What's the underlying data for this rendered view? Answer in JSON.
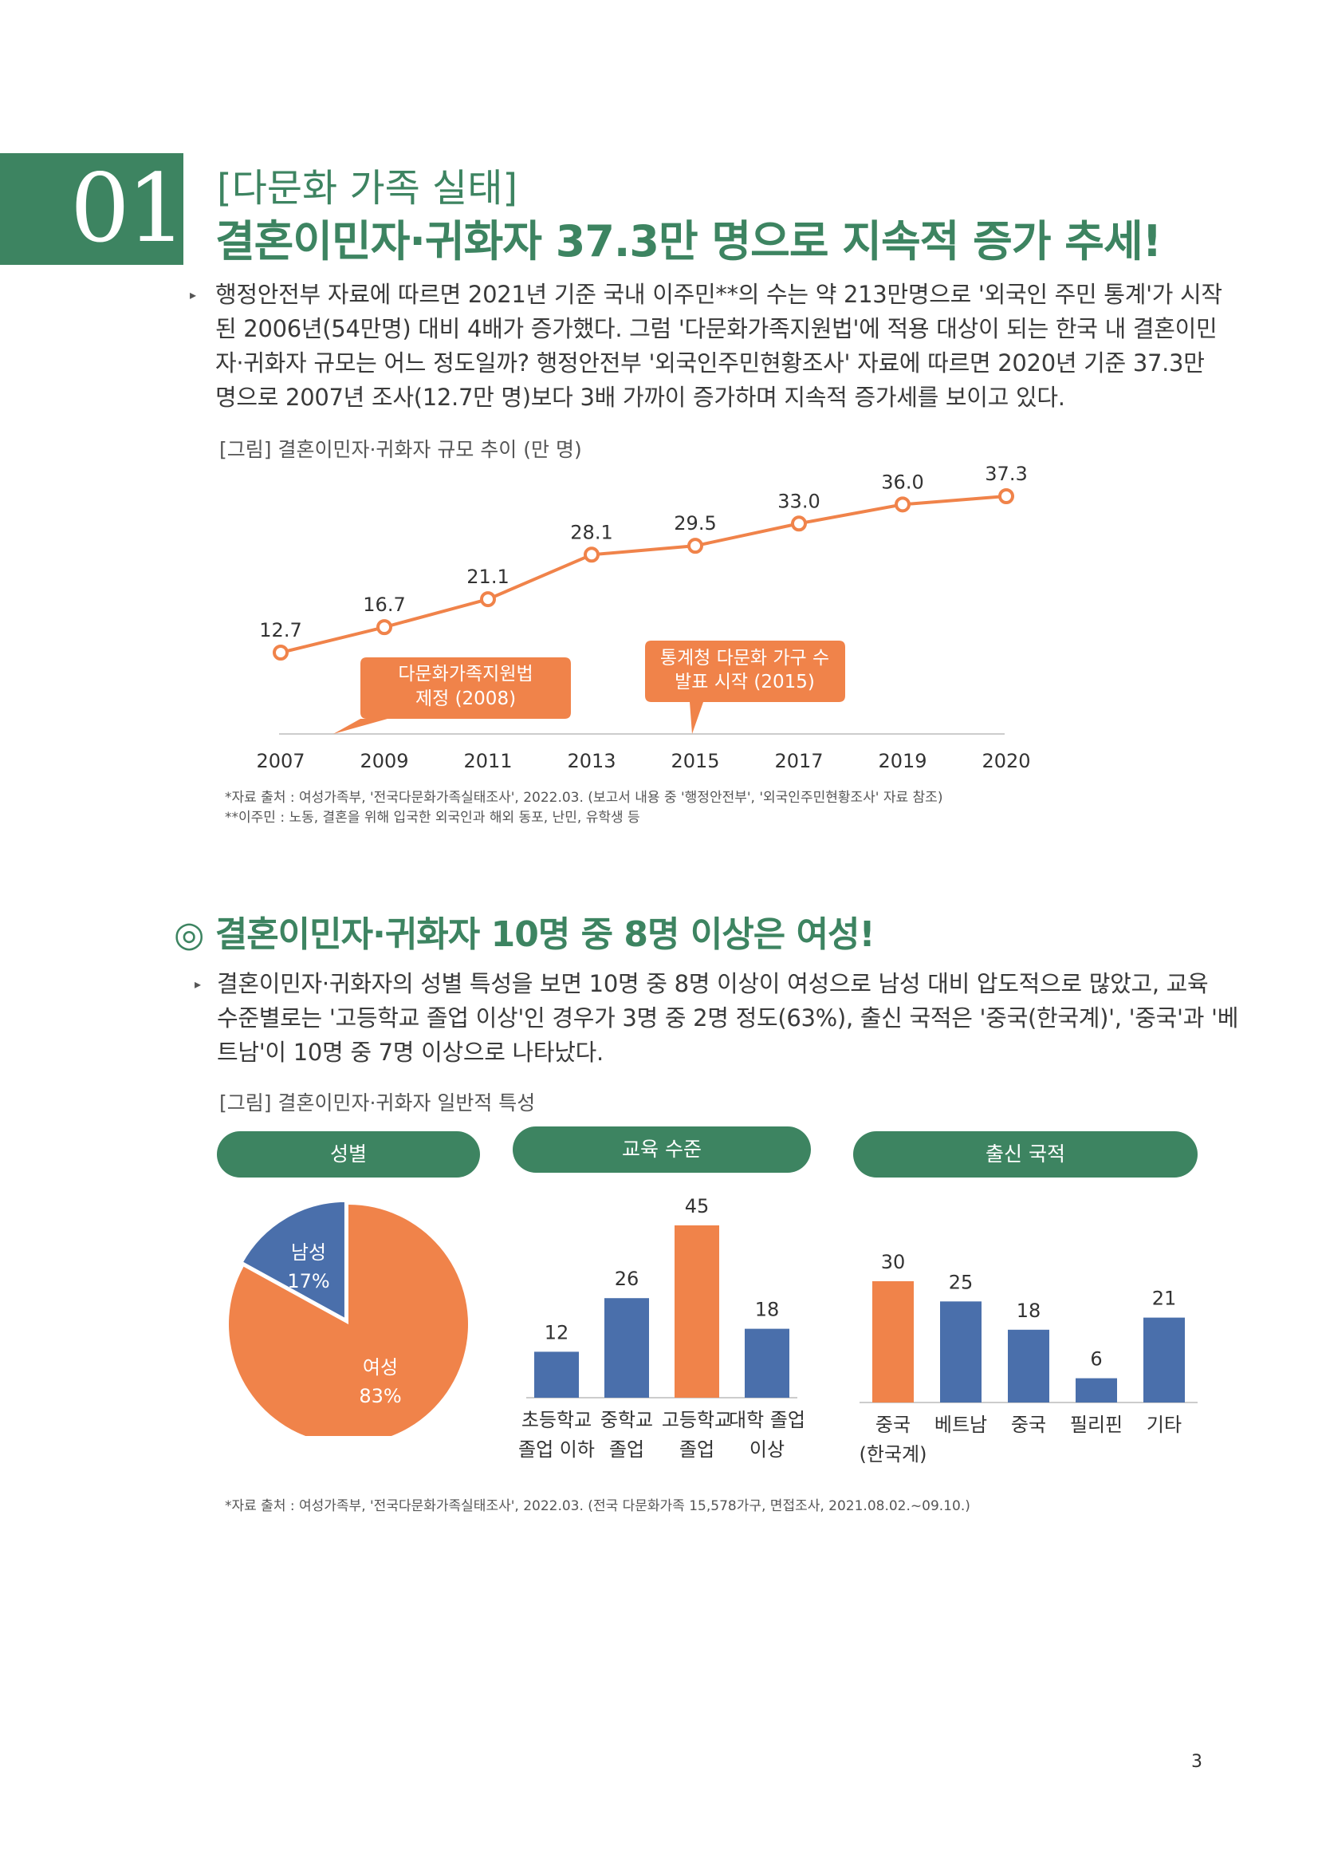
{
  "header": {
    "number": "01",
    "kicker": "[다문화 가족 실태]",
    "title": "결혼이민자·귀화자 37.3만 명으로 지속적 증가 추세!"
  },
  "intro": {
    "lines": [
      "행정안전부 자료에 따르면 2021년 기준 국내 이주민**의 수는 약 213만명으로 '외국인 주민 통계'가 시작",
      "된 2006년(54만명) 대비 4배가 증가했다. 그럼 '다문화가족지원법'에 적용 대상이 되는 한국 내 결혼이민",
      "자·귀화자 규모는 어느 정도일까? 행정안전부 '외국인주민현황조사' 자료에 따르면 2020년 기준 37.3만",
      "명으로 2007년 조사(12.7만 명)보다 3배 가까이 증가하며 지속적 증가세를 보이고 있다."
    ]
  },
  "figure1": {
    "title": "[그림] 결혼이민자·귀화자 규모 추이 (만 명)",
    "callout1": [
      "다문화가족지원법",
      "제정 (2008)"
    ],
    "callout2": [
      "통계청 다문화 가구 수",
      "발표 시작 (2015)"
    ],
    "source1": "*자료 출처 : 여성가족부, '전국다문화가족실태조사', 2022.03. (보고서 내용 중 '행정안전부', '외국인주민현황조사' 자료 참조)",
    "source2": "**이주민 : 노동, 결혼을 위해 입국한 외국인과 해외 동포, 난민, 유학생 등"
  },
  "section2": {
    "title": "◎ 결혼이민자·귀화자 10명 중 8명 이상은 여성!",
    "lines": [
      "결혼이민자·귀화자의 성별 특성을 보면 10명 중 8명 이상이 여성으로 남성 대비 압도적으로 많았고, 교육",
      "수준별로는 '고등학교 졸업 이상'인 경우가 3명 중 2명 정도(63%), 출신 국적은 '중국(한국계)', '중국'과 '베",
      "트남'이 10명 중 7명 이상으로 나타났다."
    ],
    "fig_title": "[그림] 결혼이민자·귀화자 일반적 특성",
    "pills": [
      "성별",
      "교육 수준",
      "출신 국적"
    ],
    "source": "*자료 출처 : 여성가족부, '전국다문화가족실태조사', 2022.03. (전국 다문화가족 15,578가구, 면접조사, 2021.08.02.~09.10.)"
  },
  "page_number": "3",
  "colors": {
    "green": "#3d8461",
    "orange": "#f0834a",
    "blue": "#4a6fab"
  },
  "chart_data": [
    {
      "type": "line",
      "title": "[그림] 결혼이민자·귀화자 규모 추이 (만 명)",
      "x": [
        "2007",
        "2009",
        "2011",
        "2013",
        "2015",
        "2017",
        "2019",
        "2020"
      ],
      "y": [
        12.7,
        16.7,
        21.1,
        28.1,
        29.5,
        33.0,
        36.0,
        37.3
      ],
      "labels": [
        "12.7",
        "16.7",
        "21.1",
        "28.1",
        "29.5",
        "33.0",
        "36.0",
        "37.3"
      ],
      "grid": false
    },
    {
      "type": "pie",
      "title": "성별",
      "slices": [
        {
          "label": "남성",
          "value": 17,
          "text": "17%",
          "color": "#4a6fab"
        },
        {
          "label": "여성",
          "value": 83,
          "text": "83%",
          "color": "#f0834a"
        }
      ]
    },
    {
      "type": "bar",
      "title": "교육 수준",
      "categories": [
        [
          "초등학교",
          "졸업 이하"
        ],
        [
          "중학교",
          "졸업"
        ],
        [
          "고등학교",
          "졸업"
        ],
        [
          "대학 졸업",
          "이상"
        ]
      ],
      "values": [
        12,
        26,
        45,
        18
      ],
      "highlight_index": 2,
      "ylim": [
        0,
        45
      ]
    },
    {
      "type": "bar",
      "title": "출신 국적",
      "categories": [
        [
          "중국",
          "(한국계)"
        ],
        [
          "베트남"
        ],
        [
          "중국"
        ],
        [
          "필리핀"
        ],
        [
          "기타"
        ]
      ],
      "values": [
        30,
        25,
        18,
        6,
        21
      ],
      "highlight_index": 0,
      "ylim": [
        0,
        30
      ]
    }
  ]
}
